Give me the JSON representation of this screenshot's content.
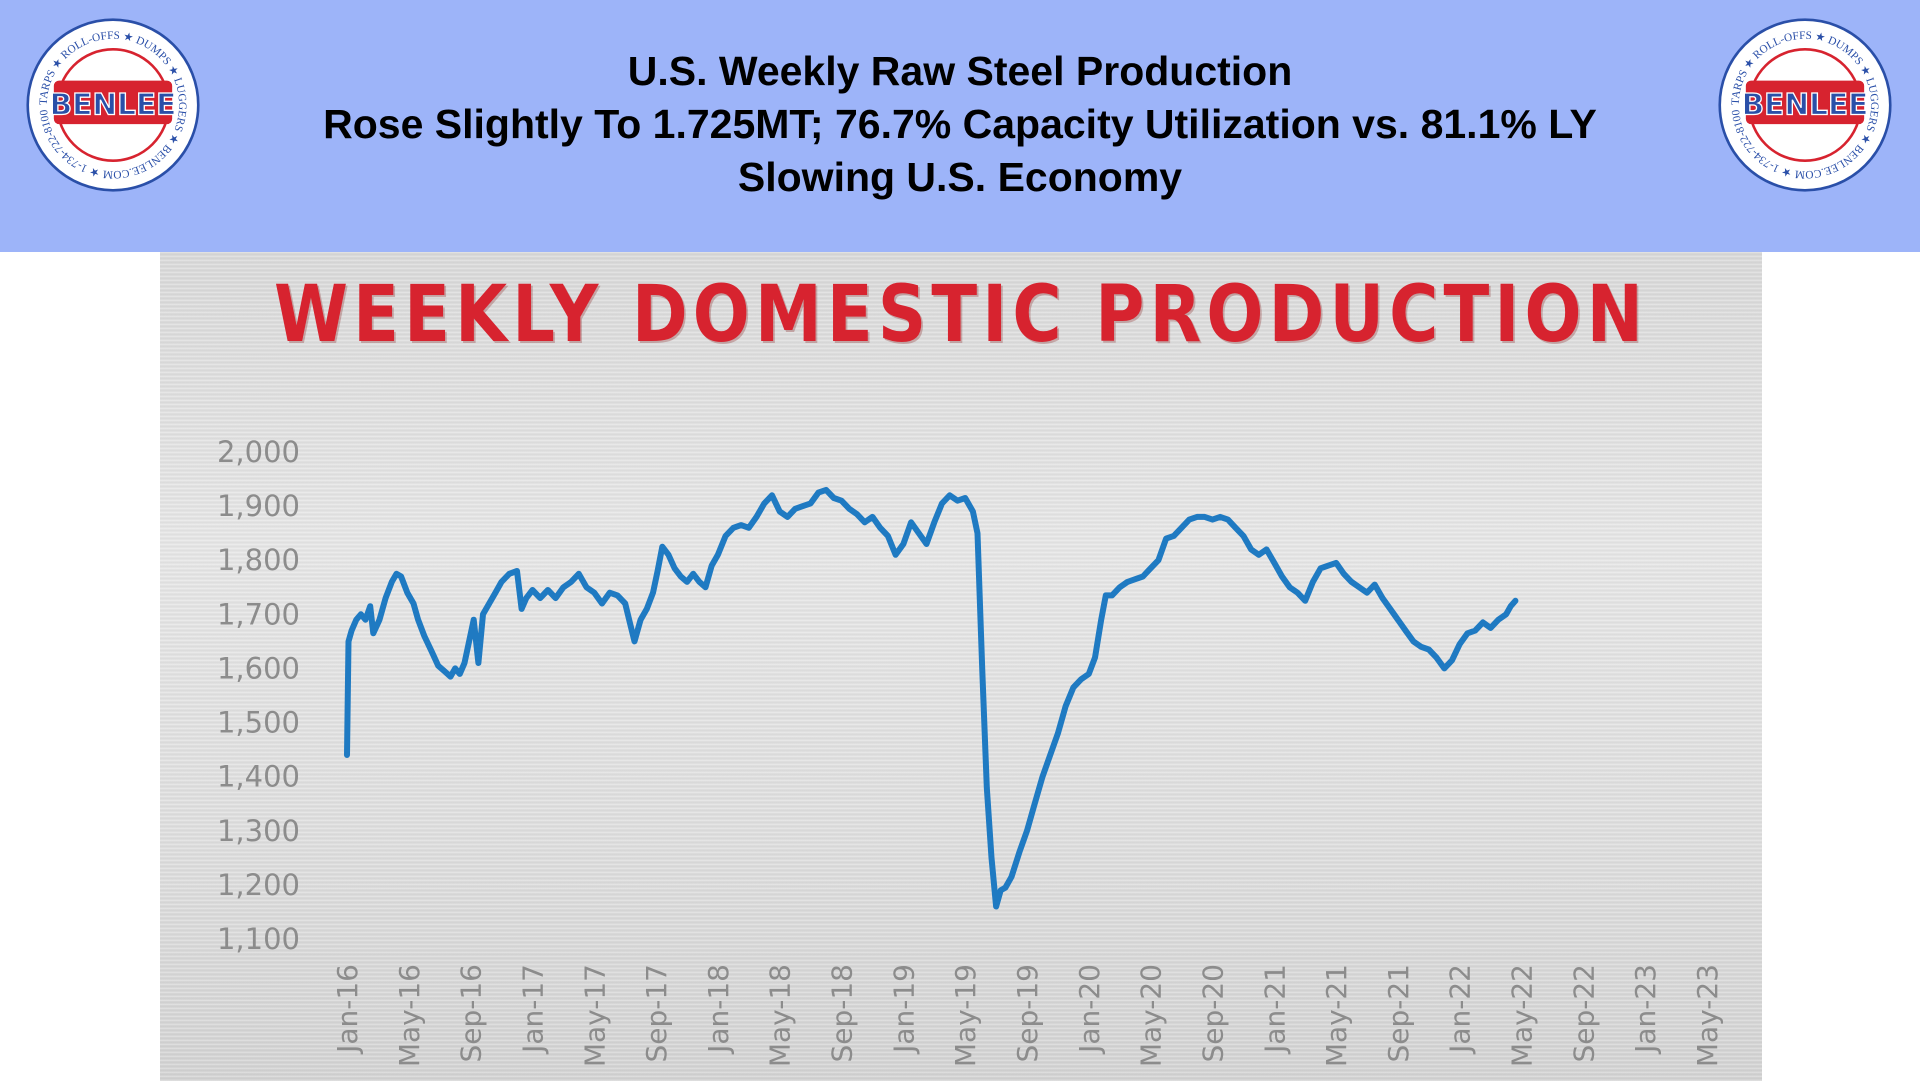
{
  "header": {
    "title_line1": "U.S. Weekly Raw Steel Production",
    "title_line2": "Rose Slightly To 1.725MT; 76.7% Capacity Utilization vs. 81.1% LY",
    "title_line3": "Slowing U.S. Economy",
    "background_color": "#9db4f9"
  },
  "logo": {
    "name": "BENLEE",
    "ring_text": "TARPS ★ ROLL-OFFS ★ DUMPS ★ LUGGERS ★ BENLEE.COM ★ 1-734-722-8100 ★ PARTS ★",
    "colors": {
      "red": "#d7232f",
      "blue": "#2a4fa8"
    }
  },
  "chart_data": {
    "type": "line",
    "title": "WEEKLY DOMESTIC PRODUCTION",
    "xlabel": "",
    "ylabel": "",
    "ylim": [
      1100,
      2000
    ],
    "yticks": [
      2000,
      1900,
      1800,
      1700,
      1600,
      1500,
      1400,
      1300,
      1200,
      1100
    ],
    "ytick_labels": [
      "2,000",
      "1,900",
      "1,800",
      "1,700",
      "1,600",
      "1,500",
      "1,400",
      "1,300",
      "1,200",
      "1,100"
    ],
    "xticks": [
      "Jan-16",
      "May-16",
      "Sep-16",
      "Jan-17",
      "May-17",
      "Sep-17",
      "Jan-18",
      "May-18",
      "Sep-18",
      "Jan-19",
      "May-19",
      "Sep-19",
      "Jan-20",
      "May-20",
      "Sep-20",
      "Jan-21",
      "May-21",
      "Sep-21",
      "Jan-22",
      "May-22",
      "Sep-22",
      "Jan-23",
      "May-23"
    ],
    "grid": false,
    "line_color": "#1f7ac2",
    "series": [
      {
        "x_unit": "months since Jan-16",
        "points": [
          [
            0.0,
            1440
          ],
          [
            0.1,
            1650
          ],
          [
            0.3,
            1670
          ],
          [
            0.6,
            1690
          ],
          [
            0.9,
            1700
          ],
          [
            1.2,
            1690
          ],
          [
            1.5,
            1715
          ],
          [
            1.7,
            1665
          ],
          [
            2.1,
            1690
          ],
          [
            2.5,
            1730
          ],
          [
            2.9,
            1760
          ],
          [
            3.2,
            1775
          ],
          [
            3.5,
            1770
          ],
          [
            3.9,
            1740
          ],
          [
            4.3,
            1720
          ],
          [
            4.6,
            1690
          ],
          [
            5.0,
            1660
          ],
          [
            5.5,
            1630
          ],
          [
            5.9,
            1605
          ],
          [
            6.3,
            1595
          ],
          [
            6.7,
            1585
          ],
          [
            7.0,
            1600
          ],
          [
            7.3,
            1590
          ],
          [
            7.6,
            1610
          ],
          [
            7.9,
            1650
          ],
          [
            8.2,
            1690
          ],
          [
            8.5,
            1610
          ],
          [
            8.8,
            1700
          ],
          [
            9.2,
            1720
          ],
          [
            9.6,
            1740
          ],
          [
            10.0,
            1760
          ],
          [
            10.5,
            1775
          ],
          [
            11.0,
            1780
          ],
          [
            11.3,
            1710
          ],
          [
            11.6,
            1730
          ],
          [
            12.0,
            1745
          ],
          [
            12.5,
            1730
          ],
          [
            13.0,
            1745
          ],
          [
            13.5,
            1730
          ],
          [
            14.0,
            1750
          ],
          [
            14.5,
            1760
          ],
          [
            15.0,
            1775
          ],
          [
            15.5,
            1750
          ],
          [
            16.0,
            1740
          ],
          [
            16.5,
            1720
          ],
          [
            17.0,
            1740
          ],
          [
            17.5,
            1735
          ],
          [
            18.0,
            1720
          ],
          [
            18.3,
            1685
          ],
          [
            18.6,
            1650
          ],
          [
            19.0,
            1690
          ],
          [
            19.4,
            1710
          ],
          [
            19.8,
            1740
          ],
          [
            20.1,
            1780
          ],
          [
            20.4,
            1825
          ],
          [
            20.8,
            1810
          ],
          [
            21.2,
            1785
          ],
          [
            21.6,
            1770
          ],
          [
            22.0,
            1760
          ],
          [
            22.4,
            1775
          ],
          [
            22.8,
            1760
          ],
          [
            23.2,
            1750
          ],
          [
            23.6,
            1790
          ],
          [
            24.0,
            1810
          ],
          [
            24.5,
            1845
          ],
          [
            25.0,
            1860
          ],
          [
            25.5,
            1865
          ],
          [
            26.0,
            1860
          ],
          [
            26.5,
            1880
          ],
          [
            27.0,
            1905
          ],
          [
            27.5,
            1920
          ],
          [
            28.0,
            1890
          ],
          [
            28.5,
            1880
          ],
          [
            29.0,
            1895
          ],
          [
            29.5,
            1900
          ],
          [
            30.0,
            1905
          ],
          [
            30.5,
            1925
          ],
          [
            31.0,
            1930
          ],
          [
            31.5,
            1915
          ],
          [
            32.0,
            1910
          ],
          [
            32.5,
            1895
          ],
          [
            33.0,
            1885
          ],
          [
            33.5,
            1870
          ],
          [
            34.0,
            1880
          ],
          [
            34.5,
            1860
          ],
          [
            35.0,
            1845
          ],
          [
            35.5,
            1810
          ],
          [
            36.0,
            1830
          ],
          [
            36.5,
            1870
          ],
          [
            37.0,
            1850
          ],
          [
            37.5,
            1830
          ],
          [
            38.0,
            1870
          ],
          [
            38.5,
            1905
          ],
          [
            39.0,
            1920
          ],
          [
            39.5,
            1910
          ],
          [
            40.0,
            1915
          ],
          [
            40.5,
            1890
          ],
          [
            40.8,
            1850
          ],
          [
            41.1,
            1600
          ],
          [
            41.4,
            1380
          ],
          [
            41.7,
            1250
          ],
          [
            42.0,
            1160
          ],
          [
            42.3,
            1190
          ],
          [
            42.6,
            1195
          ],
          [
            43.0,
            1215
          ],
          [
            43.5,
            1260
          ],
          [
            44.0,
            1300
          ],
          [
            44.5,
            1350
          ],
          [
            45.0,
            1400
          ],
          [
            45.5,
            1440
          ],
          [
            46.0,
            1480
          ],
          [
            46.5,
            1530
          ],
          [
            47.0,
            1565
          ],
          [
            47.5,
            1580
          ],
          [
            48.0,
            1590
          ],
          [
            48.4,
            1620
          ],
          [
            48.8,
            1690
          ],
          [
            49.1,
            1735
          ],
          [
            49.5,
            1735
          ],
          [
            50.0,
            1750
          ],
          [
            50.5,
            1760
          ],
          [
            51.0,
            1765
          ],
          [
            51.5,
            1770
          ],
          [
            52.0,
            1785
          ],
          [
            52.5,
            1800
          ],
          [
            53.0,
            1840
          ],
          [
            53.5,
            1845
          ],
          [
            54.0,
            1860
          ],
          [
            54.5,
            1875
          ],
          [
            55.0,
            1880
          ],
          [
            55.5,
            1880
          ],
          [
            56.0,
            1875
          ],
          [
            56.5,
            1880
          ],
          [
            57.0,
            1875
          ],
          [
            57.5,
            1860
          ],
          [
            58.0,
            1845
          ],
          [
            58.5,
            1820
          ],
          [
            59.0,
            1810
          ],
          [
            59.5,
            1820
          ],
          [
            60.0,
            1795
          ],
          [
            60.5,
            1770
          ],
          [
            61.0,
            1750
          ],
          [
            61.5,
            1740
          ],
          [
            62.0,
            1725
          ],
          [
            62.5,
            1760
          ],
          [
            63.0,
            1785
          ],
          [
            63.5,
            1790
          ],
          [
            64.0,
            1795
          ],
          [
            64.5,
            1775
          ],
          [
            65.0,
            1760
          ],
          [
            65.5,
            1750
          ],
          [
            66.0,
            1740
          ],
          [
            66.5,
            1755
          ],
          [
            67.0,
            1730
          ],
          [
            67.5,
            1710
          ],
          [
            68.0,
            1690
          ],
          [
            68.5,
            1670
          ],
          [
            69.0,
            1650
          ],
          [
            69.5,
            1640
          ],
          [
            70.0,
            1635
          ],
          [
            70.5,
            1620
          ],
          [
            71.0,
            1600
          ],
          [
            71.5,
            1615
          ],
          [
            72.0,
            1645
          ],
          [
            72.5,
            1665
          ],
          [
            73.0,
            1670
          ],
          [
            73.5,
            1685
          ],
          [
            74.0,
            1675
          ],
          [
            74.5,
            1690
          ],
          [
            75.0,
            1700
          ],
          [
            75.3,
            1715
          ],
          [
            75.6,
            1725
          ]
        ]
      }
    ]
  }
}
